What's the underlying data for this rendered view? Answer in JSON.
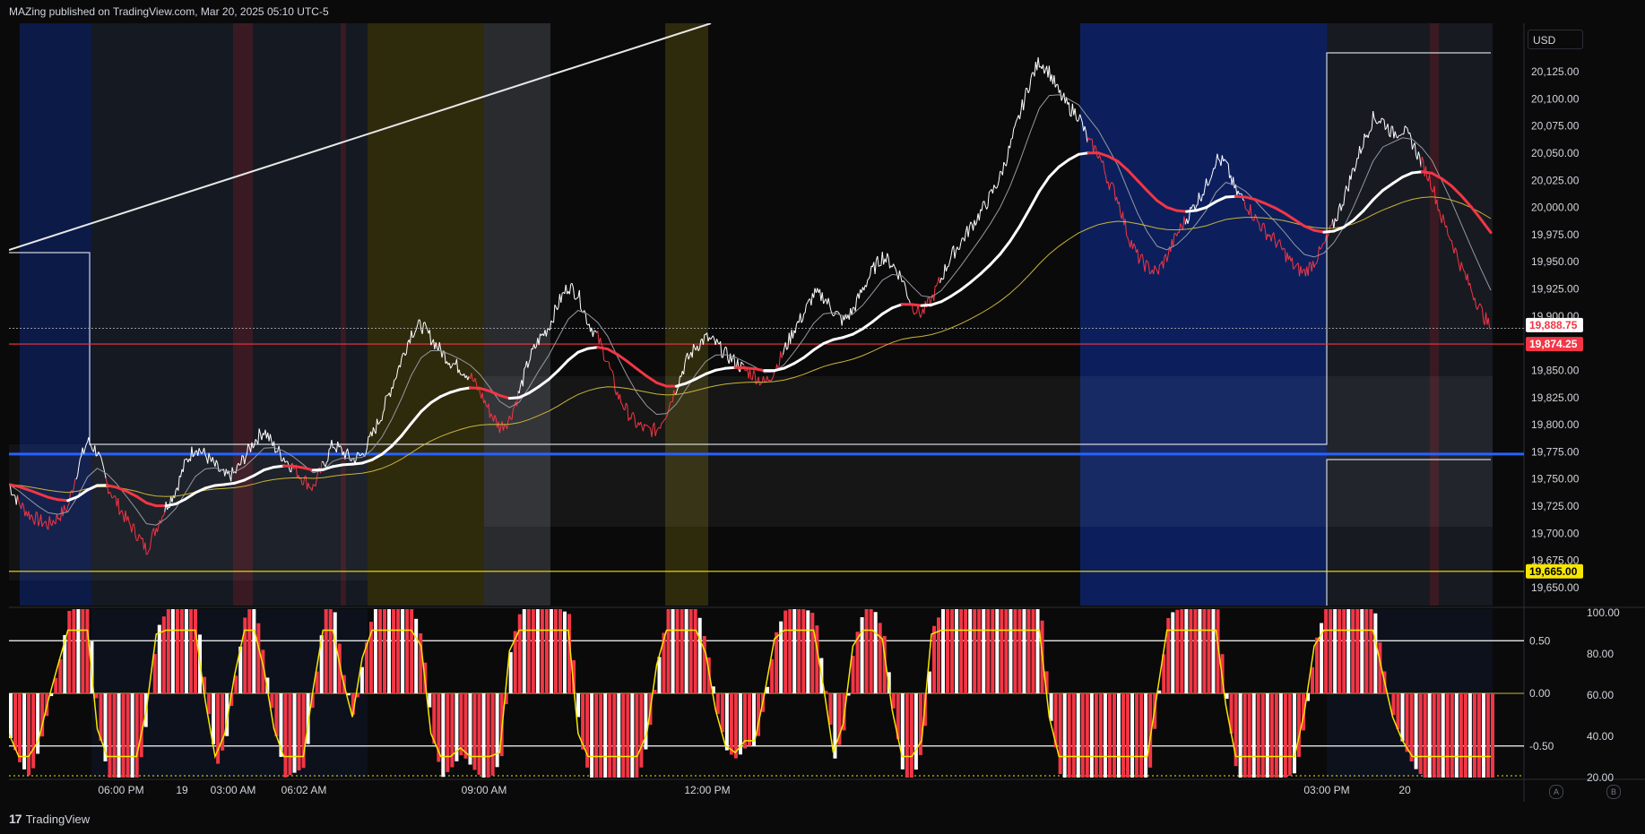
{
  "header": {
    "publisher": "MAZing published on TradingView.com, Mar 20, 2025 05:10 UTC-5"
  },
  "footer": {
    "brand": "TradingView",
    "logo": "17"
  },
  "currency": "USD",
  "chart_data": {
    "type": "line",
    "price_ticks": [
      "20,125.00",
      "20,100.00",
      "20,075.00",
      "20,050.00",
      "20,025.00",
      "20,000.00",
      "19,975.00",
      "19,950.00",
      "19,925.00",
      "19,900.00",
      "19,875.00",
      "19,850.00",
      "19,825.00",
      "19,800.00",
      "19,775.00",
      "19,750.00",
      "19,725.00",
      "19,700.00",
      "19,675.00",
      "19,650.00"
    ],
    "price_range": [
      19640,
      20150
    ],
    "price_labels": [
      {
        "text": "19,888.75",
        "value": 19888.75,
        "color": "#f23645"
      },
      {
        "text": "19,874.25",
        "value": 19874.25,
        "color": "#f23645"
      },
      {
        "text": "19,665.00",
        "value": 19665.0,
        "color": "#f7e600"
      }
    ],
    "horizontal_levels": [
      {
        "value": 19874.25,
        "color": "#f23645"
      },
      {
        "value": 19773,
        "color": "#2962ff"
      },
      {
        "value": 19665,
        "color": "#f7e600"
      }
    ],
    "time_labels": [
      "06:00 PM",
      "19",
      "03:00 AM",
      "06:02 AM",
      "09:00 AM",
      "12:00 PM",
      "03:00 PM",
      "20"
    ],
    "osc_ticks_left": [
      "0.50",
      "0.00",
      "-0.50"
    ],
    "osc_ticks_right": [
      "100.00",
      "80.00",
      "60.00",
      "40.00",
      "20.00"
    ],
    "osc_range": [
      -0.8,
      0.8
    ],
    "price_series": [
      19745,
      19728,
      19718,
      19712,
      19708,
      19715,
      19724,
      19760,
      19785,
      19775,
      19745,
      19728,
      19712,
      19700,
      19685,
      19705,
      19725,
      19740,
      19765,
      19780,
      19772,
      19762,
      19752,
      19755,
      19770,
      19785,
      19795,
      19780,
      19770,
      19760,
      19750,
      19742,
      19762,
      19782,
      19775,
      19768,
      19772,
      19790,
      19810,
      19835,
      19860,
      19885,
      19892,
      19880,
      19868,
      19858,
      19852,
      19845,
      19830,
      19812,
      19798,
      19805,
      19830,
      19860,
      19878,
      19890,
      19912,
      19928,
      19920,
      19895,
      19880,
      19858,
      19828,
      19812,
      19800,
      19795,
      19795,
      19812,
      19835,
      19858,
      19872,
      19880,
      19875,
      19865,
      19858,
      19850,
      19845,
      19838,
      19850,
      19868,
      19888,
      19902,
      19920,
      19918,
      19905,
      19895,
      19905,
      19925,
      19942,
      19955,
      19948,
      19935,
      19910,
      19902,
      19915,
      19935,
      19955,
      19968,
      19982,
      19995,
      20010,
      20028,
      20055,
      20085,
      20115,
      20135,
      20125,
      20105,
      20092,
      20085,
      20060,
      20050,
      20025,
      20008,
      19975,
      19955,
      19945,
      19940,
      19955,
      19975,
      19990,
      20005,
      20020,
      20045,
      20040,
      20015,
      20005,
      19990,
      19978,
      19970,
      19958,
      19945,
      19940,
      19950,
      19965,
      19985,
      20008,
      20035,
      20060,
      20082,
      20080,
      20068,
      20072,
      20060,
      20040,
      20022,
      19990,
      19970,
      19945,
      19925,
      19905,
      19888
    ],
    "legend_entries": []
  }
}
